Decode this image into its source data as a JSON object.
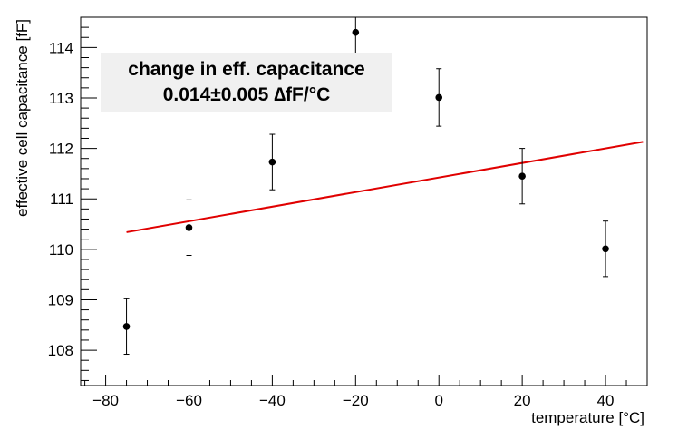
{
  "chart_data": {
    "type": "scatter",
    "xlabel": "temperature [°C]",
    "ylabel": "effective cell capacitance [fF]",
    "xlim": [
      -86,
      50
    ],
    "ylim": [
      107.3,
      114.6
    ],
    "x_ticks": [
      -80,
      -60,
      -40,
      -20,
      0,
      20,
      40
    ],
    "x_tick_labels": [
      "−80",
      "−60",
      "−40",
      "−20",
      "0",
      "20",
      "40"
    ],
    "y_ticks": [
      108,
      109,
      110,
      111,
      112,
      113,
      114
    ],
    "y_tick_labels": [
      "108",
      "109",
      "110",
      "111",
      "112",
      "113",
      "114"
    ],
    "grid": false,
    "series": [
      {
        "points": [
          {
            "x": -75,
            "y": 108.47,
            "err": 0.55
          },
          {
            "x": -60,
            "y": 110.43,
            "err": 0.55
          },
          {
            "x": -40,
            "y": 111.73,
            "err": 0.55
          },
          {
            "x": -20,
            "y": 114.3,
            "err": 0.55
          },
          {
            "x": 0,
            "y": 113.01,
            "err": 0.57
          },
          {
            "x": 20,
            "y": 111.45,
            "err": 0.55
          },
          {
            "x": 40,
            "y": 110.01,
            "err": 0.55
          }
        ],
        "color": "#000000"
      }
    ],
    "fit": {
      "x": [
        -75,
        49
      ],
      "y": [
        110.34,
        112.13
      ],
      "color": "#e00000"
    },
    "stats_box": {
      "line1": "change in eff. capacitance",
      "line2": "0.014±0.005  ∆fF/°C"
    }
  }
}
